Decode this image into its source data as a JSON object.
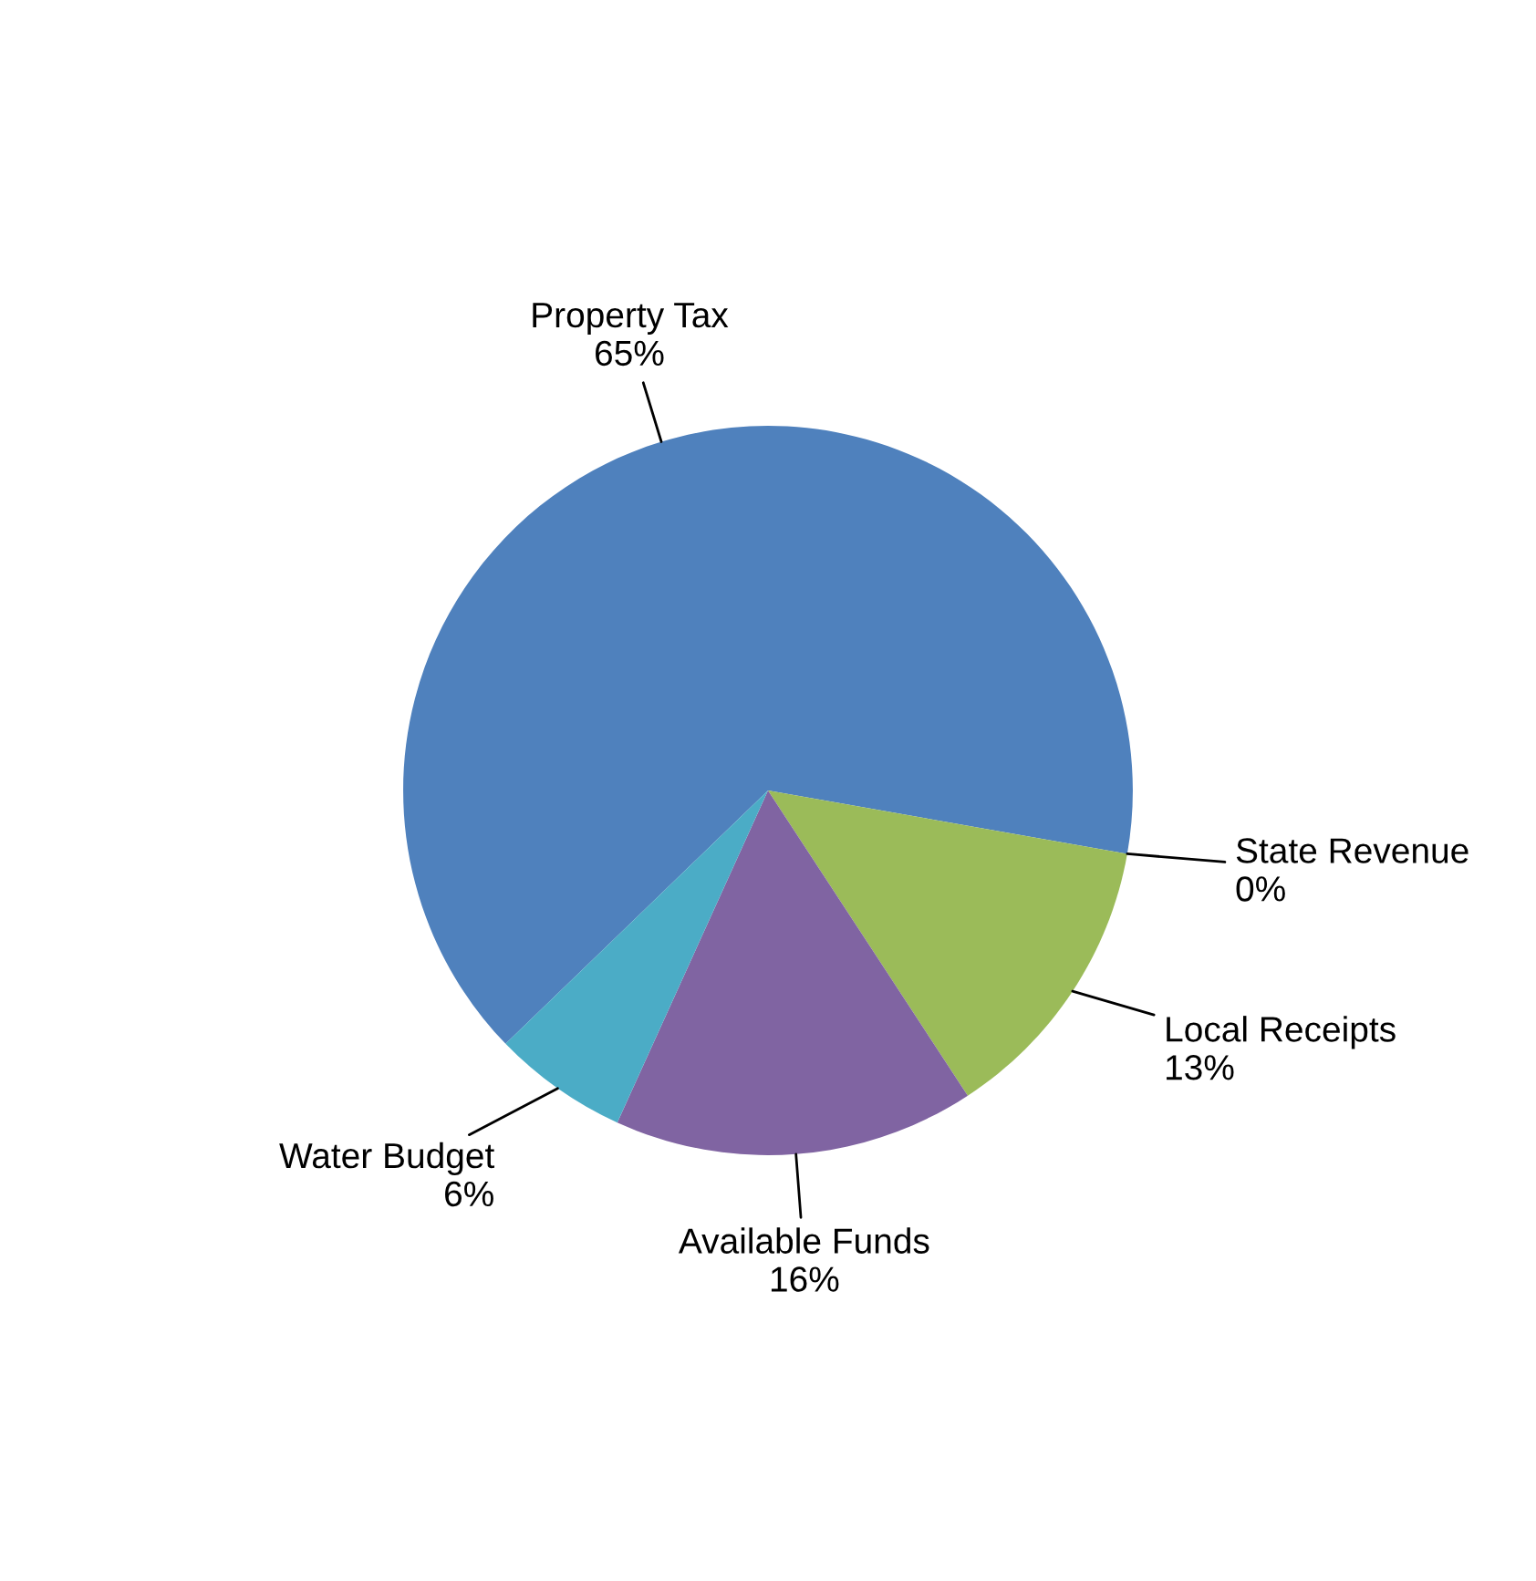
{
  "chart_data": {
    "type": "pie",
    "categories": [
      "Property Tax",
      "State Revenue",
      "Local Receipts",
      "Available Funds",
      "Water Budget"
    ],
    "values": [
      65,
      0,
      13,
      16,
      6
    ],
    "colors": [
      "#4f81bd",
      "#c0504d",
      "#9bbb59",
      "#8064a2",
      "#4bacc6"
    ],
    "value_labels": [
      "65%",
      "0%",
      "13%",
      "16%",
      "6%"
    ]
  }
}
